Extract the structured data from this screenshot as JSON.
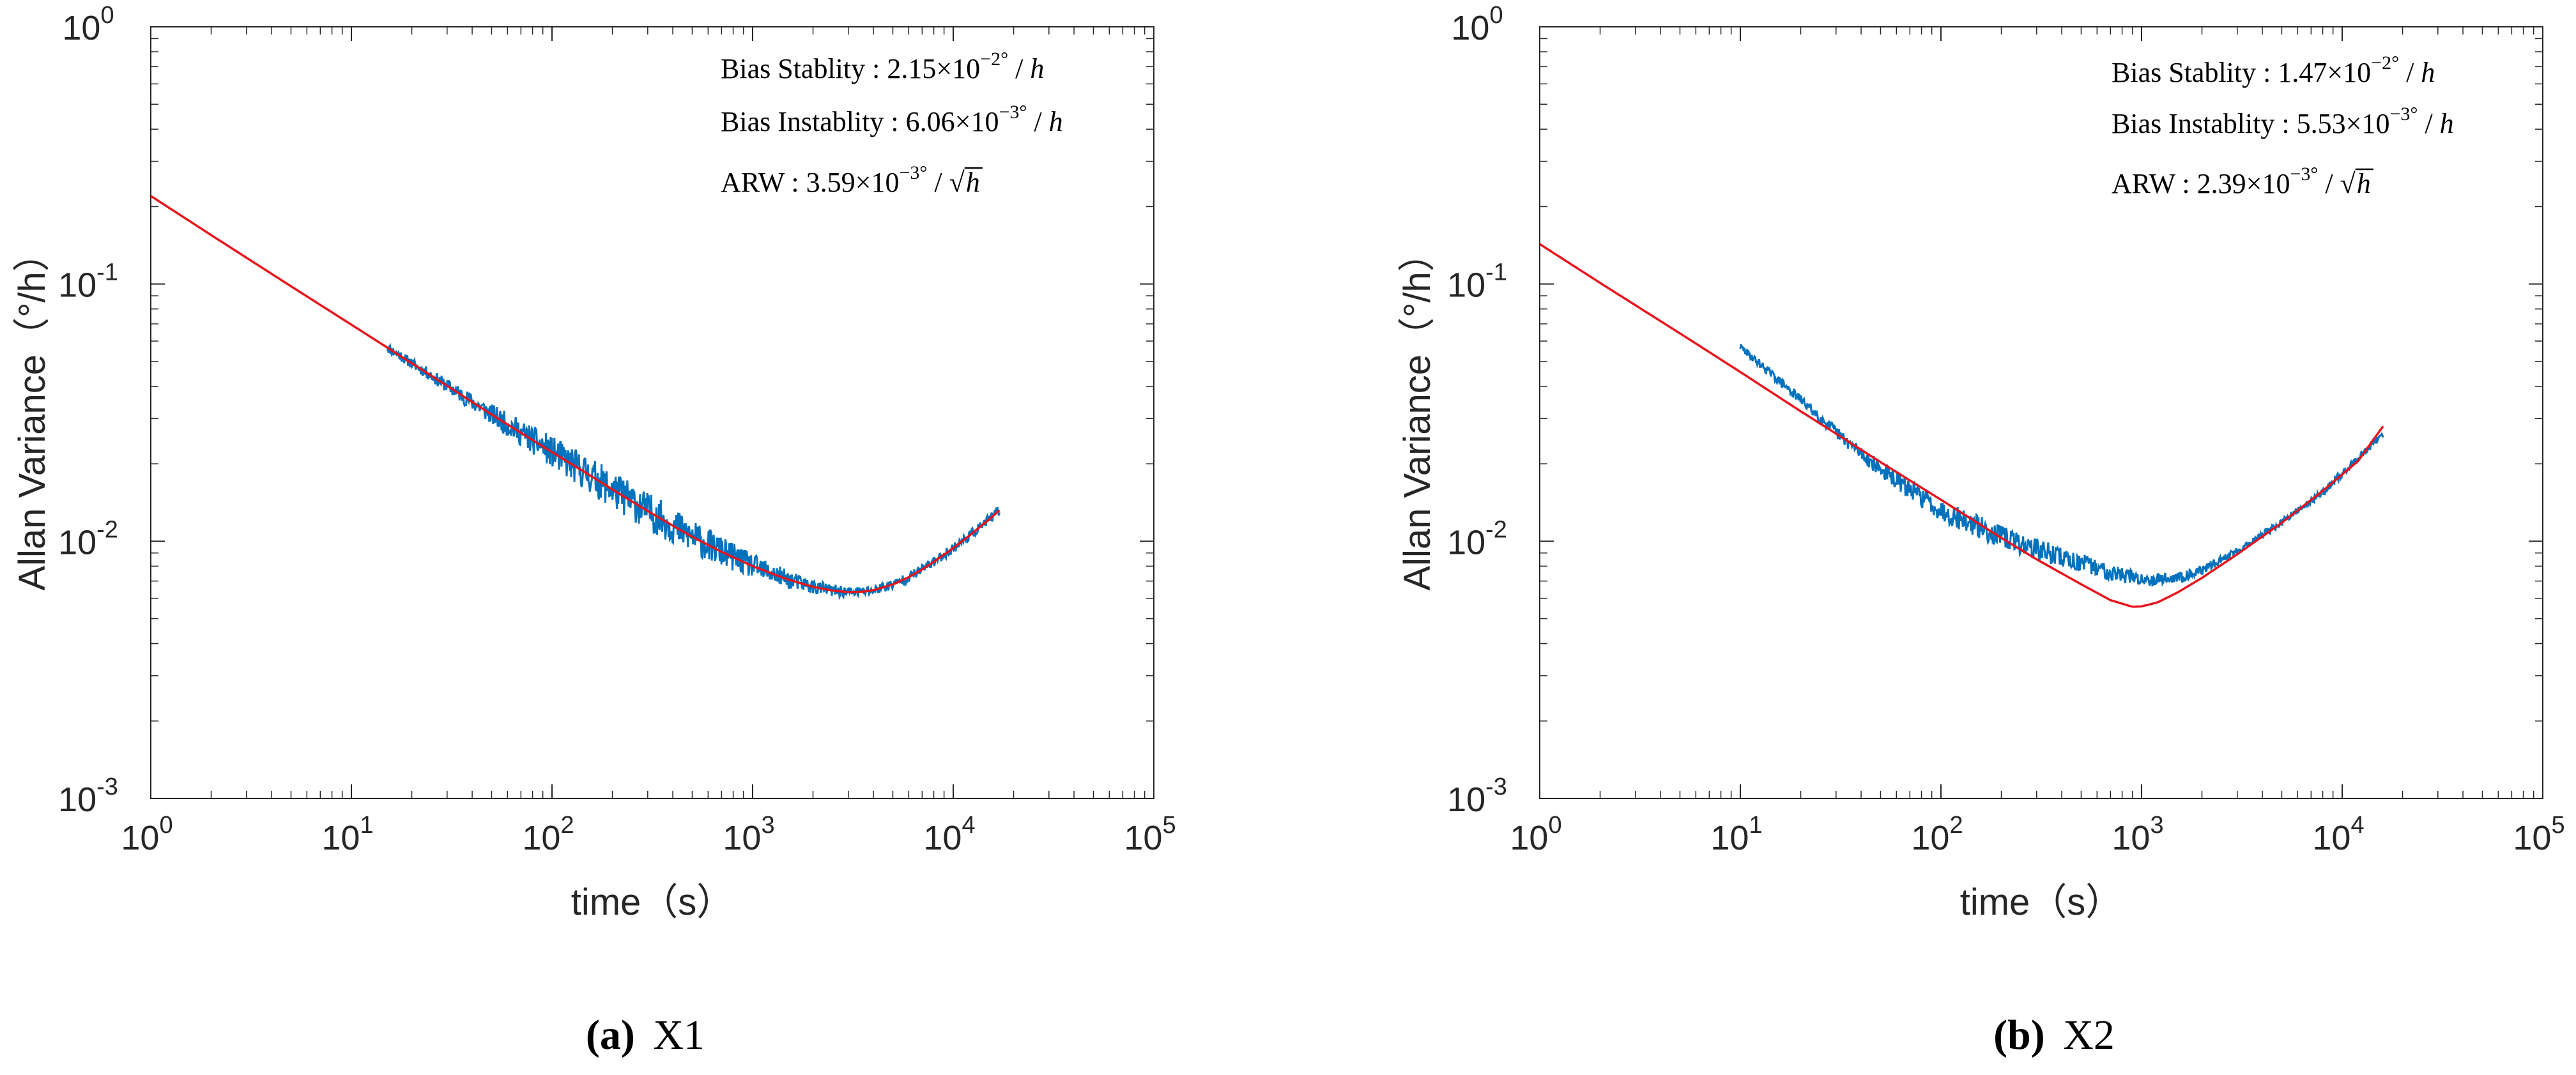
{
  "figure": {
    "panels": [
      {
        "letter": "(a)",
        "label": "X1"
      },
      {
        "letter": "(b)",
        "label": "X2"
      }
    ]
  },
  "chart_data": [
    {
      "type": "line",
      "panel_caption": "(a) X1",
      "xlabel": "time（s）",
      "ylabel": "Allan Variance（°/h）",
      "xscale": "log",
      "yscale": "log",
      "xlim": [
        1,
        100000
      ],
      "ylim": [
        0.001,
        1
      ],
      "x_ticks": [
        1,
        10,
        100,
        1000,
        10000,
        100000
      ],
      "y_ticks": [
        0.001,
        0.01,
        0.1,
        1
      ],
      "x_tick_labels": [
        [
          "10",
          "0"
        ],
        [
          "10",
          "1"
        ],
        [
          "10",
          "2"
        ],
        [
          "10",
          "3"
        ],
        [
          "10",
          "4"
        ],
        [
          "10",
          "5"
        ]
      ],
      "y_tick_labels": [
        [
          "10",
          "-3"
        ],
        [
          "10",
          "-2"
        ],
        [
          "10",
          "-1"
        ],
        [
          "10",
          "0"
        ]
      ],
      "annotations": [
        {
          "prefix": "Bias Stablity : ",
          "mantissa": "2.15",
          "exponent": "−2",
          "deg": "°",
          "unit": "h",
          "sqrt": false
        },
        {
          "prefix": "Bias Instablity : ",
          "mantissa": "6.06",
          "exponent": "−3",
          "deg": "°",
          "unit": "h",
          "sqrt": false
        },
        {
          "prefix": "ARW : ",
          "mantissa": "3.59",
          "exponent": "−3",
          "deg": "°",
          "unit": "h",
          "sqrt": true
        }
      ],
      "annotation_position": "top-right",
      "legend": "none",
      "grid": false,
      "series": [
        {
          "name": "measured",
          "color": "#0072bd",
          "x_start": 15,
          "x_end": 17000,
          "noise_base": 0.04,
          "noise_peak": 0.15,
          "seed": 11
        },
        {
          "name": "fit",
          "color": "#e8141c",
          "x_start": 1,
          "x_end": 17000,
          "x": [
            1,
            2,
            5,
            10,
            15,
            20,
            30,
            50,
            70,
            100,
            150,
            200,
            300,
            500,
            700,
            1000,
            1500,
            2000,
            2500,
            3000,
            3500,
            4000,
            5000,
            6000,
            7000,
            8000,
            10000,
            12000,
            15000,
            17000
          ],
          "y": [
            0.22,
            0.155,
            0.098,
            0.0695,
            0.0568,
            0.0492,
            0.0402,
            0.0311,
            0.0264,
            0.0222,
            0.0183,
            0.0159,
            0.0131,
            0.0104,
            0.0091,
            0.008,
            0.0071,
            0.00665,
            0.00643,
            0.00634,
            0.00636,
            0.00645,
            0.00679,
            0.00725,
            0.00777,
            0.00832,
            0.0094,
            0.0105,
            0.0121,
            0.0132
          ]
        }
      ]
    },
    {
      "type": "line",
      "panel_caption": "(b) X2",
      "xlabel": "time（s）",
      "ylabel": "Allan Variance（°/h）",
      "xscale": "log",
      "yscale": "log",
      "xlim": [
        1,
        100000
      ],
      "ylim": [
        0.001,
        1
      ],
      "x_ticks": [
        1,
        10,
        100,
        1000,
        10000,
        100000
      ],
      "y_ticks": [
        0.001,
        0.01,
        0.1,
        1
      ],
      "x_tick_labels": [
        [
          "10",
          "0"
        ],
        [
          "10",
          "1"
        ],
        [
          "10",
          "2"
        ],
        [
          "10",
          "3"
        ],
        [
          "10",
          "4"
        ],
        [
          "10",
          "5"
        ]
      ],
      "y_tick_labels": [
        [
          "10",
          "-3"
        ],
        [
          "10",
          "-2"
        ],
        [
          "10",
          "-1"
        ],
        [
          "10",
          "0"
        ]
      ],
      "annotations": [
        {
          "prefix": "Bias Stablity : ",
          "mantissa": "1.47",
          "exponent": "−2",
          "deg": "°",
          "unit": "h",
          "sqrt": false
        },
        {
          "prefix": "Bias Instablity : ",
          "mantissa": "5.53",
          "exponent": "−3",
          "deg": "°",
          "unit": "h",
          "sqrt": false
        },
        {
          "prefix": "ARW : ",
          "mantissa": "2.39",
          "exponent": "−3",
          "deg": "°",
          "unit": "h",
          "sqrt": true
        }
      ],
      "annotation_position": "top-right",
      "legend": "none",
      "grid": false,
      "series": [
        {
          "name": "measured",
          "color": "#0072bd",
          "x_start": 10,
          "x_end": 16000,
          "noise_base": 0.03,
          "noise_peak": 0.09,
          "seed": 29,
          "x": [
            10,
            20,
            30,
            50,
            100,
            200,
            300,
            500,
            700,
            1000,
            1500,
            2000,
            3000,
            5000,
            8000,
            12000,
            16000
          ],
          "y": [
            0.057,
            0.0355,
            0.0265,
            0.019,
            0.0132,
            0.0104,
            0.0093,
            0.0082,
            0.0076,
            0.0071,
            0.0072,
            0.0077,
            0.0092,
            0.0118,
            0.0155,
            0.021,
            0.026
          ]
        },
        {
          "name": "fit",
          "color": "#e8141c",
          "x_start": 1,
          "x_end": 16000,
          "x": [
            1,
            2,
            5,
            10,
            20,
            30,
            50,
            100,
            200,
            300,
            500,
            700,
            900,
            1000,
            1200,
            1500,
            2000,
            3000,
            5000,
            8000,
            12000,
            16000
          ],
          "y": [
            0.143,
            0.101,
            0.0643,
            0.0455,
            0.032,
            0.0262,
            0.0203,
            0.0145,
            0.0103,
            0.0085,
            0.0068,
            0.0059,
            0.00556,
            0.00558,
            0.00578,
            0.0063,
            0.0072,
            0.0089,
            0.0118,
            0.0157,
            0.0205,
            0.028
          ]
        }
      ]
    }
  ]
}
